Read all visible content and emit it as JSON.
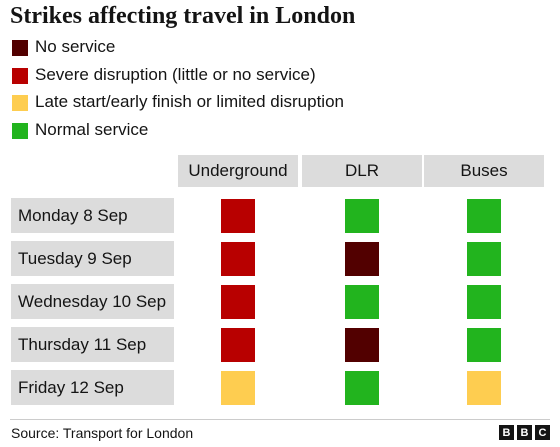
{
  "title": "Strikes affecting travel in London",
  "legend": [
    {
      "label": "No service",
      "color": "#520000"
    },
    {
      "label": "Severe disruption (little or no service)",
      "color": "#b80000"
    },
    {
      "label": "Late start/early finish or limited disruption",
      "color": "#fecd50"
    },
    {
      "label": "Normal service",
      "color": "#22b41e"
    }
  ],
  "chart_data": {
    "type": "table",
    "title": "Strikes affecting travel in London",
    "columns": [
      "Underground",
      "DLR",
      "Buses"
    ],
    "rows": [
      {
        "label": "Monday 8 Sep",
        "status": [
          "Severe disruption (little or no service)",
          "Normal service",
          "Normal service"
        ]
      },
      {
        "label": "Tuesday 9 Sep",
        "status": [
          "Severe disruption (little or no service)",
          "No service",
          "Normal service"
        ]
      },
      {
        "label": "Wednesday 10 Sep",
        "status": [
          "Severe disruption (little or no service)",
          "Normal service",
          "Normal service"
        ]
      },
      {
        "label": "Thursday 11 Sep",
        "status": [
          "Severe disruption (little or no service)",
          "No service",
          "Normal service"
        ]
      },
      {
        "label": "Friday 12 Sep",
        "status": [
          "Late start/early finish or limited disruption",
          "Normal service",
          "Late start/early finish or limited disruption"
        ]
      }
    ]
  },
  "source": "Source: Transport for London",
  "logo": [
    "B",
    "B",
    "C"
  ]
}
